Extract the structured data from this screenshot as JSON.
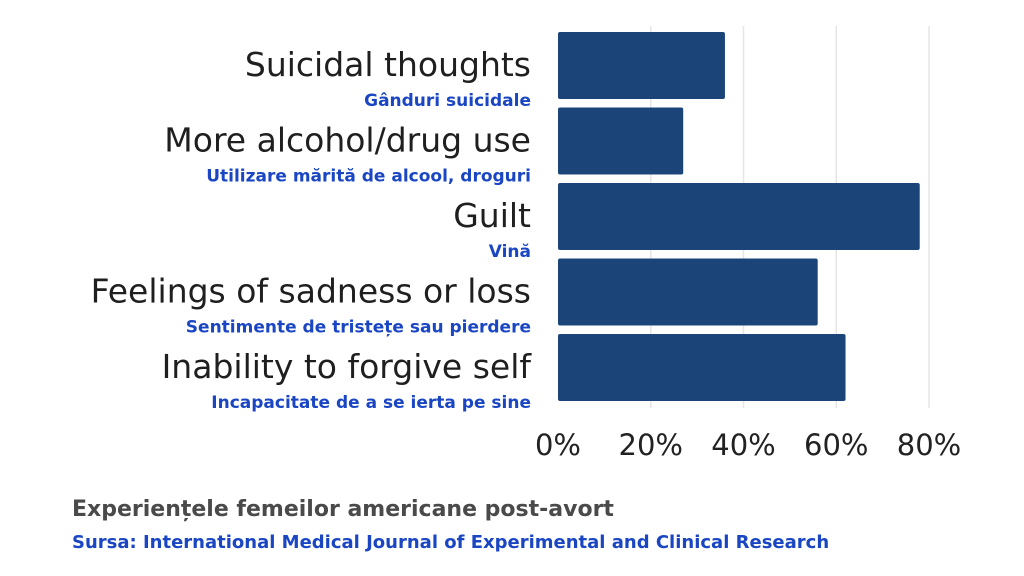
{
  "chart_data": {
    "type": "bar",
    "orientation": "horizontal",
    "categories": [
      "Suicidal thoughts",
      "More alcohol/drug use",
      "Guilt",
      "Feelings of sadness or loss",
      "Inability to forgive self"
    ],
    "category_translations": [
      "Gânduri suicidale",
      "Utilizare mărită de alcool, droguri",
      "Vină",
      "Sentimente de tristețe sau pierdere",
      "Incapacitate de a se ierta pe sine"
    ],
    "values": [
      36,
      27,
      78,
      56,
      62
    ],
    "xlim": [
      0,
      80
    ],
    "xticks": [
      0,
      20,
      40,
      60,
      80
    ],
    "xtick_labels": [
      "0%",
      "20%",
      "40%",
      "60%",
      "80%"
    ],
    "grid": true,
    "bar_color": "#1b4579"
  },
  "caption": "Experiențele femeilor americane post-avort",
  "source": "Sursa: International Medical Journal of Experimental and Clinical Research"
}
